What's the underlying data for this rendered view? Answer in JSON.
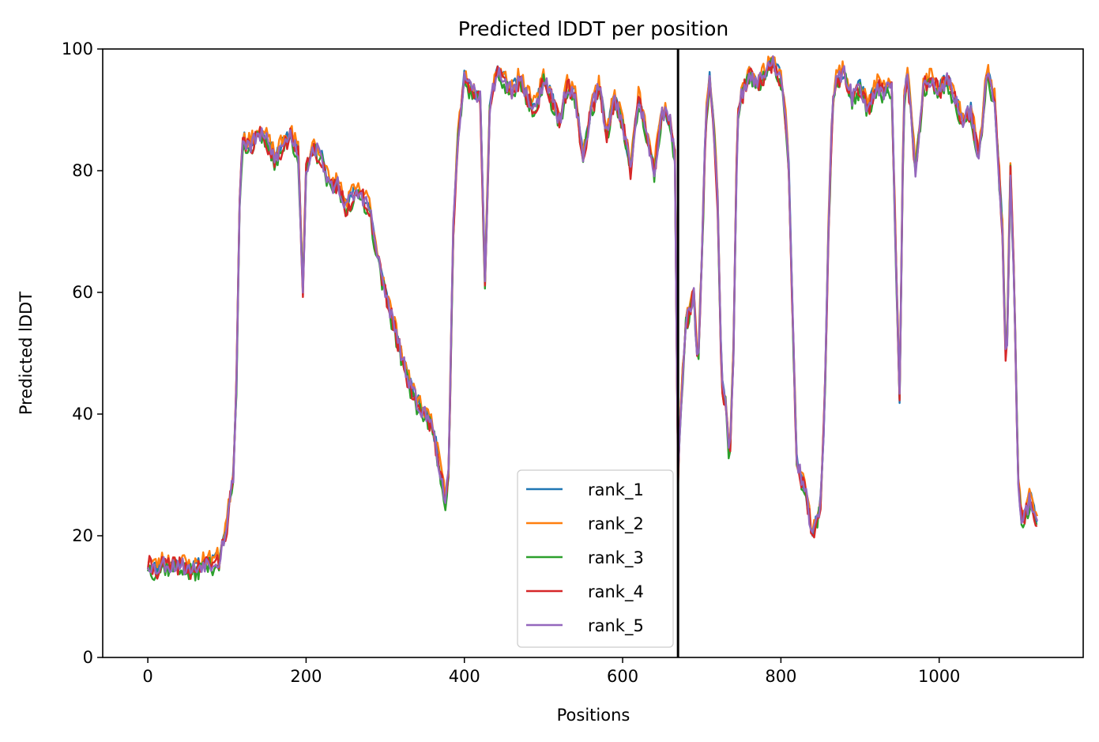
{
  "chart_data": {
    "type": "line",
    "title": "Predicted lDDT per position",
    "xlabel": "Positions",
    "ylabel": "Predicted lDDT",
    "xlim": [
      -57,
      1182
    ],
    "ylim": [
      0,
      100
    ],
    "xticks": [
      0,
      200,
      400,
      600,
      800,
      1000
    ],
    "yticks": [
      0,
      20,
      40,
      60,
      80,
      100
    ],
    "grid": false,
    "legend_position": "lower-center",
    "vertical_line_x": 670,
    "vertical_line_color": "#000000",
    "knots": [
      [
        0,
        15.5
      ],
      [
        10,
        14.5
      ],
      [
        20,
        15.5
      ],
      [
        30,
        15.0
      ],
      [
        40,
        15.5
      ],
      [
        50,
        14.5
      ],
      [
        60,
        14.5
      ],
      [
        70,
        15.5
      ],
      [
        80,
        15.5
      ],
      [
        90,
        16.0
      ],
      [
        100,
        22.0
      ],
      [
        108,
        30.0
      ],
      [
        112,
        45.0
      ],
      [
        116,
        75.0
      ],
      [
        120,
        85.0
      ],
      [
        130,
        84.0
      ],
      [
        140,
        86.0
      ],
      [
        150,
        85.0
      ],
      [
        160,
        82.0
      ],
      [
        170,
        84.0
      ],
      [
        180,
        86.0
      ],
      [
        190,
        83.0
      ],
      [
        196,
        60.0
      ],
      [
        200,
        80.0
      ],
      [
        210,
        84.0
      ],
      [
        220,
        82.0
      ],
      [
        230,
        77.0
      ],
      [
        240,
        78.0
      ],
      [
        250,
        74.0
      ],
      [
        260,
        76.0
      ],
      [
        270,
        76.0
      ],
      [
        280,
        74.0
      ],
      [
        290,
        66.0
      ],
      [
        300,
        60.0
      ],
      [
        310,
        55.0
      ],
      [
        320,
        50.0
      ],
      [
        330,
        45.0
      ],
      [
        340,
        42.0
      ],
      [
        350,
        40.0
      ],
      [
        360,
        38.0
      ],
      [
        370,
        30.0
      ],
      [
        376,
        26.0
      ],
      [
        380,
        30.0
      ],
      [
        386,
        70.0
      ],
      [
        392,
        86.0
      ],
      [
        400,
        95.0
      ],
      [
        410,
        93.0
      ],
      [
        420,
        92.0
      ],
      [
        426,
        62.0
      ],
      [
        432,
        90.0
      ],
      [
        440,
        96.0
      ],
      [
        450,
        95.0
      ],
      [
        460,
        93.0
      ],
      [
        470,
        95.0
      ],
      [
        480,
        92.0
      ],
      [
        490,
        90.0
      ],
      [
        500,
        95.0
      ],
      [
        510,
        92.0
      ],
      [
        520,
        88.0
      ],
      [
        530,
        94.0
      ],
      [
        540,
        92.0
      ],
      [
        550,
        82.0
      ],
      [
        560,
        90.0
      ],
      [
        570,
        94.0
      ],
      [
        580,
        86.0
      ],
      [
        590,
        92.0
      ],
      [
        600,
        88.0
      ],
      [
        610,
        80.0
      ],
      [
        620,
        92.0
      ],
      [
        630,
        86.0
      ],
      [
        640,
        80.0
      ],
      [
        650,
        90.0
      ],
      [
        660,
        88.0
      ],
      [
        666,
        82.0
      ],
      [
        670,
        30.0
      ],
      [
        675,
        45.0
      ],
      [
        680,
        55.0
      ],
      [
        690,
        60.0
      ],
      [
        695,
        47.0
      ],
      [
        700,
        65.0
      ],
      [
        705,
        88.0
      ],
      [
        710,
        95.0
      ],
      [
        715,
        88.0
      ],
      [
        720,
        75.0
      ],
      [
        725,
        45.0
      ],
      [
        730,
        42.0
      ],
      [
        735,
        32.0
      ],
      [
        740,
        50.0
      ],
      [
        745,
        88.0
      ],
      [
        750,
        92.0
      ],
      [
        760,
        96.0
      ],
      [
        770,
        94.0
      ],
      [
        780,
        96.0
      ],
      [
        790,
        98.0
      ],
      [
        800,
        95.0
      ],
      [
        805,
        90.0
      ],
      [
        810,
        80.0
      ],
      [
        815,
        55.0
      ],
      [
        820,
        32.0
      ],
      [
        830,
        28.0
      ],
      [
        840,
        20.0
      ],
      [
        850,
        25.0
      ],
      [
        855,
        40.0
      ],
      [
        860,
        70.0
      ],
      [
        865,
        90.0
      ],
      [
        870,
        95.0
      ],
      [
        880,
        96.0
      ],
      [
        890,
        92.0
      ],
      [
        900,
        94.0
      ],
      [
        910,
        90.0
      ],
      [
        920,
        94.0
      ],
      [
        930,
        93.0
      ],
      [
        940,
        94.0
      ],
      [
        950,
        42.0
      ],
      [
        955,
        90.0
      ],
      [
        960,
        96.0
      ],
      [
        970,
        80.0
      ],
      [
        980,
        94.0
      ],
      [
        990,
        95.0
      ],
      [
        1000,
        93.0
      ],
      [
        1010,
        95.0
      ],
      [
        1020,
        92.0
      ],
      [
        1030,
        88.0
      ],
      [
        1040,
        90.0
      ],
      [
        1050,
        82.0
      ],
      [
        1060,
        96.0
      ],
      [
        1070,
        92.0
      ],
      [
        1080,
        70.0
      ],
      [
        1085,
        45.0
      ],
      [
        1090,
        80.0
      ],
      [
        1095,
        60.0
      ],
      [
        1100,
        28.0
      ],
      [
        1105,
        22.0
      ],
      [
        1110,
        24.0
      ],
      [
        1115,
        26.0
      ],
      [
        1120,
        24.0
      ],
      [
        1125,
        22.0
      ]
    ],
    "series": [
      {
        "name": "rank_1",
        "color": "#1f77b4",
        "offset": 0.3,
        "noise": 1.2,
        "seed": 11
      },
      {
        "name": "rank_2",
        "color": "#ff7f0e",
        "offset": 0.8,
        "noise": 1.4,
        "seed": 23
      },
      {
        "name": "rank_3",
        "color": "#2ca02c",
        "offset": -0.6,
        "noise": 1.5,
        "seed": 37
      },
      {
        "name": "rank_4",
        "color": "#d62728",
        "offset": -0.2,
        "noise": 1.6,
        "seed": 41
      },
      {
        "name": "rank_5",
        "color": "#9467bd",
        "offset": 0.0,
        "noise": 1.4,
        "seed": 53
      }
    ]
  }
}
